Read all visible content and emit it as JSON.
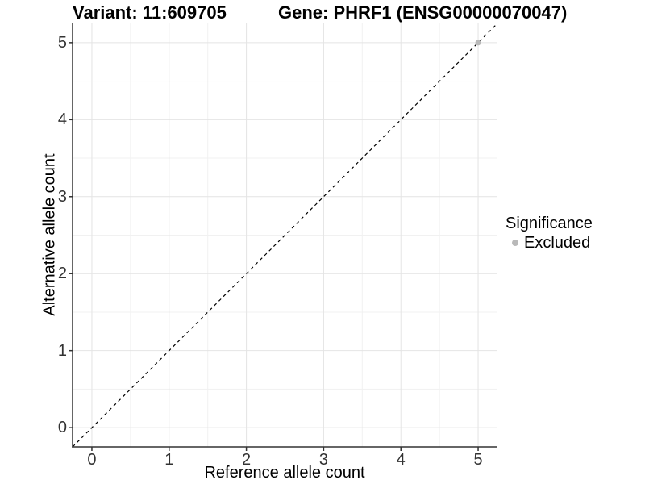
{
  "header": {
    "variant_title": "Variant: 11:609705",
    "gene_title": "Gene: PHRF1 (ENSG00000070047)"
  },
  "legend": {
    "title": "Significance",
    "entries": [
      {
        "label": "Excluded",
        "color": "#b9b9b9"
      }
    ]
  },
  "chart_data": {
    "type": "scatter",
    "title": "Variant: 11:609705  Gene: PHRF1 (ENSG00000070047)",
    "xlabel": "Reference allele count",
    "ylabel": "Alternative allele count",
    "xlim": [
      -0.25,
      5.25
    ],
    "ylim": [
      -0.25,
      5.25
    ],
    "x_ticks": [
      0,
      1,
      2,
      3,
      4,
      5
    ],
    "y_ticks": [
      0,
      1,
      2,
      3,
      4,
      5
    ],
    "grid": {
      "on": true,
      "major_color": "#e4e4e4",
      "minor_color": "#f1f1f1",
      "minor_at_halfway": true
    },
    "axis_line_color": "#333333",
    "tick_color": "#333333",
    "series": [
      {
        "name": "Excluded",
        "color": "#b9b9b9",
        "points": [
          {
            "x": 5,
            "y": 5
          }
        ]
      }
    ],
    "reference_line": {
      "kind": "identity",
      "style": "dashed",
      "color": "#000000"
    },
    "legend_position": "right"
  }
}
